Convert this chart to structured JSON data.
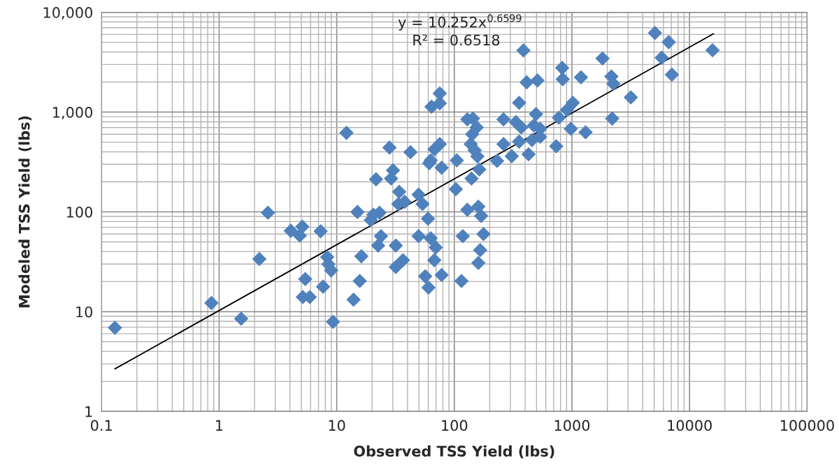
{
  "chart_data": {
    "type": "scatter",
    "xlabel": "Observed TSS Yield (lbs)",
    "ylabel": "Modeled TSS Yield (lbs)",
    "log": "xy",
    "grid": true,
    "legend": false,
    "xlim": [
      0.1,
      100000
    ],
    "ylim": [
      1,
      10000
    ],
    "xticks": [
      0.1,
      1,
      10,
      100,
      1000,
      10000,
      100000
    ],
    "yticks": [
      1,
      10,
      100,
      {
        "value": 1000,
        "label": "1,000"
      },
      {
        "value": 10000,
        "label": "10,000"
      }
    ],
    "annotations": [
      "y = 10.252x$^{0.6599}$",
      "R² = 0.6518"
    ],
    "series": [
      {
        "color": "#4f81bd",
        "marker": "diamond",
        "x": [
          0.13,
          0.86,
          1.54,
          2.2,
          2.6,
          4.07,
          5.1,
          4.85,
          7.3,
          5.4,
          5.15,
          5.9,
          7.66,
          8.3,
          8.5,
          8.97,
          9.3,
          12.1,
          13.9,
          15.0,
          16.2,
          15.7,
          19.5,
          20.5,
          23.1,
          21.6,
          22.5,
          23.8,
          28.1,
          29.0,
          30.1,
          34.0,
          33.4,
          37.8,
          31.8,
          31.8,
          36.6,
          42.4,
          49.7,
          49.7,
          53.7,
          59.7,
          63.0,
          56.6,
          60.3,
          64.0,
          61.2,
          63.0,
          67.9,
          69.5,
          67.6,
          78.0,
          75.2,
          75.2,
          75.2,
          78.0,
          103,
          105,
          118,
          115,
          129,
          144,
          155,
          142,
          138,
          149,
          157,
          163,
          140,
          129,
          160,
          169,
          177,
          166,
          160,
          231,
          262,
          262,
          308,
          334,
          371,
          356,
          428,
          356,
          387,
          412,
          509,
          495,
          475,
          537,
          458,
          537,
          736,
          775,
          908,
          1019,
          979,
          1306,
          826,
          835,
          1194,
          1820,
          2164,
          2249,
          3170,
          2200,
          5080,
          6650,
          5800,
          7080,
          15700
        ],
        "values": [
          6.9,
          12.2,
          8.5,
          33.7,
          98,
          64.6,
          71,
          57.8,
          64,
          21.2,
          14.0,
          14.0,
          17.8,
          35.2,
          29.9,
          25.9,
          7.9,
          619,
          13.2,
          99.8,
          35.9,
          20.3,
          82.8,
          93.8,
          98,
          212,
          46,
          57.1,
          441,
          216,
          261,
          159,
          120,
          126,
          46,
          28.0,
          32.8,
          397,
          149,
          57.1,
          120,
          85.4,
          54.4,
          22.6,
          17.4,
          1132,
          308,
          328,
          424,
          44,
          32.8,
          23.3,
          1542,
          1227,
          478,
          277,
          169,
          328,
          57.1,
          20.3,
          845,
          861,
          702,
          601,
          478,
          414,
          360,
          266,
          216,
          105,
          113,
          91,
          60,
          41.4,
          30.7,
          324,
          845,
          478,
          362,
          794,
          702,
          506,
          378,
          1241,
          4150,
          1989,
          2075,
          955,
          733,
          681,
          525,
          566,
          455,
          881,
          1050,
          1241,
          681,
          628,
          2774,
          2138,
          2234,
          3451,
          2276,
          1926,
          1406,
          861,
          6210,
          5025,
          3510,
          2374,
          4170
        ]
      },
      {
        "type": "line",
        "color": "#000000",
        "x": [
          0.13,
          16000
        ],
        "values": [
          2.67,
          6100
        ]
      }
    ]
  }
}
